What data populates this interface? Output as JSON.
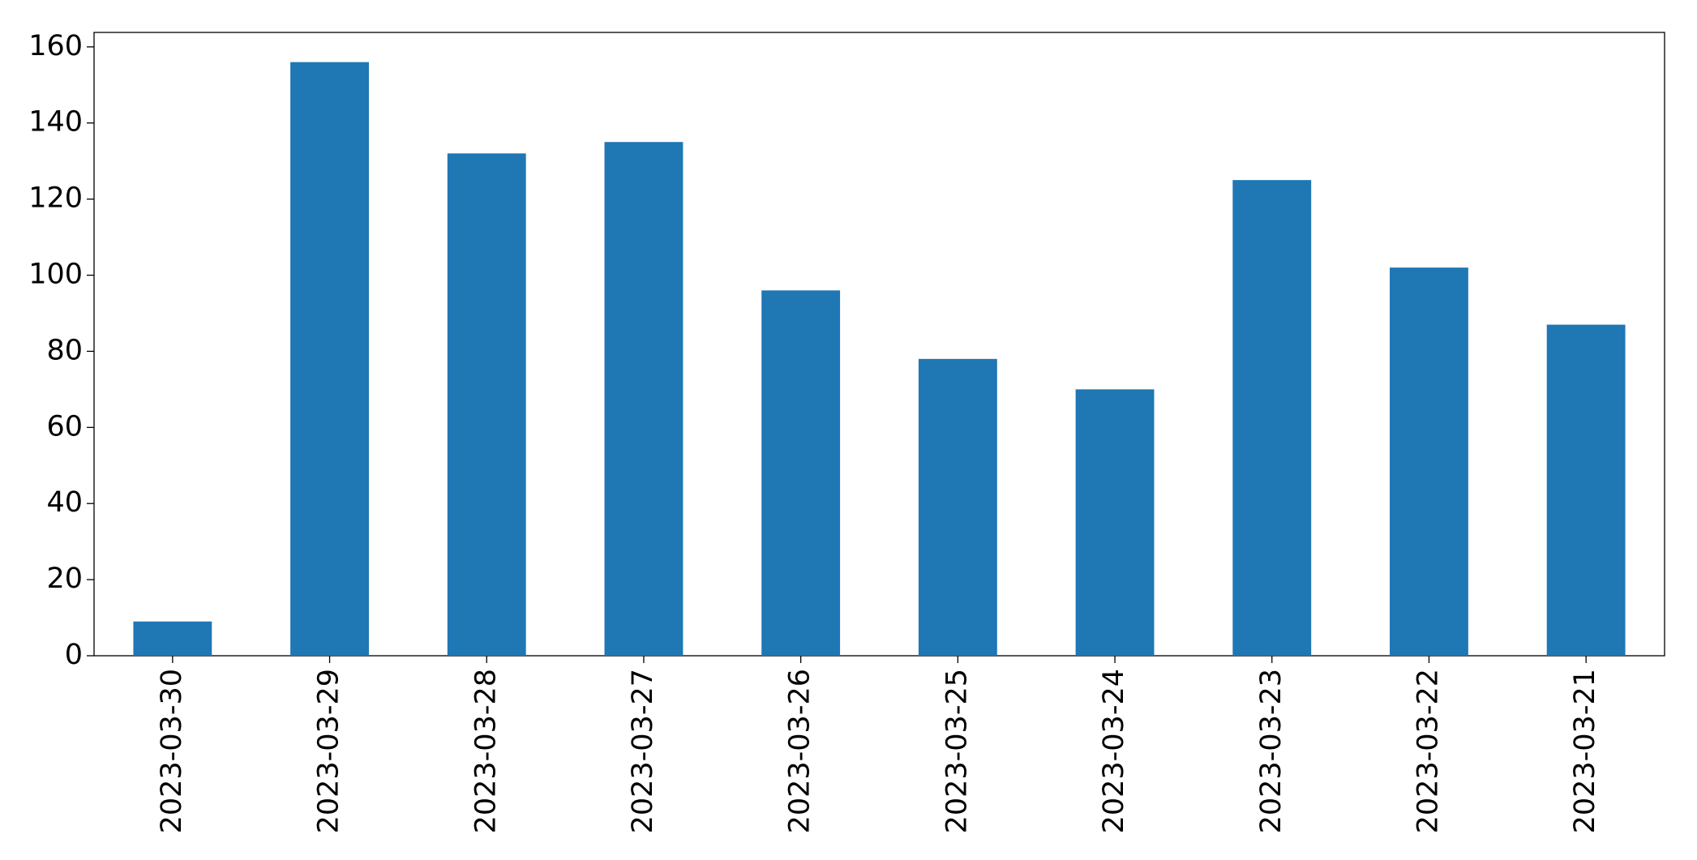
{
  "chart_data": {
    "type": "bar",
    "categories": [
      "2023-03-30",
      "2023-03-29",
      "2023-03-28",
      "2023-03-27",
      "2023-03-26",
      "2023-03-25",
      "2023-03-24",
      "2023-03-23",
      "2023-03-22",
      "2023-03-21"
    ],
    "values": [
      9,
      156,
      132,
      135,
      96,
      78,
      70,
      125,
      102,
      87
    ],
    "color": "#1f77b4",
    "ylim": [
      0,
      163.8
    ],
    "yticks": [
      0,
      20,
      40,
      60,
      80,
      100,
      120,
      140,
      160
    ],
    "grid": false
  }
}
